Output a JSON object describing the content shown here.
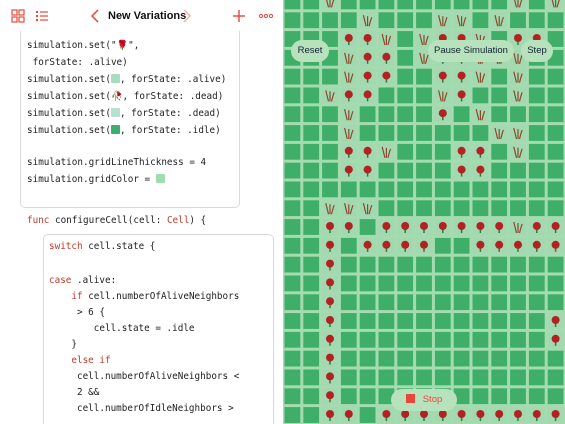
{
  "nav": {
    "title": "New Variations",
    "icons": [
      "grid-icon",
      "list-icon",
      "chevron-left-icon",
      "chevron-right-icon",
      "plus-icon",
      "more-icon"
    ]
  },
  "code": {
    "block1": [
      "simulation.set(\"🌹\",",
      " forState: .alive)",
      "simulation.set(▢, forState: .alive)",
      "simulation.set(🥀, forState: .dead)",
      "simulation.set(▢, forState: .dead)",
      "simulation.set(▢, forState: .idle)",
      "",
      "simulation.gridLineThickness = 4",
      "simulation.gridColor = ▢"
    ],
    "func_decl": "func configureCell(cell: Cell) {",
    "block2": [
      "switch cell.state {",
      "",
      "case .alive:",
      "    if cell.numberOfAliveNeighbors",
      "     > 6 {",
      "        cell.state = .idle",
      "    }",
      "    else if",
      "     cell.numberOfAliveNeighbors <",
      "     2 &&",
      "     cell.numberOfIdleNeighbors >"
    ]
  },
  "colors": {
    "alive_swatch": "#a8dcc0",
    "dead_swatch": "#b8e0d0",
    "idle_swatch": "#3cae6e",
    "grid_color": "#9fdcae",
    "cell_green": "#3fae68",
    "grid_line": "#a5dcaf",
    "accent_red": "#e8483a"
  },
  "controls": {
    "reset": "Reset",
    "pause": "Pause Simulation",
    "step": "Step",
    "stop": "Stop"
  },
  "simulation": {
    "rows": [
      "..D.........D.D",
      "....D...DD.D...",
      "...AAD.DAAD.AA.",
      "...DAA.DAADDD..",
      "...DAA..AAD.D..",
      "..DAA...DA..D..",
      "...D....A.D....",
      "...D.......DD..",
      "...AAD...AA.D..",
      "...AA....AA....",
      "...............",
      "..DDD..........",
      "..AA.AAAAAAADAA",
      "..A.AAAA..AAAAA",
      "..A............",
      "..A............",
      "..A............",
      "..A...........A",
      "..A...........A",
      "..A............",
      "..A............",
      "..A............",
      "..AA.AAAAAAAAAA",
      "..............."
    ]
  }
}
